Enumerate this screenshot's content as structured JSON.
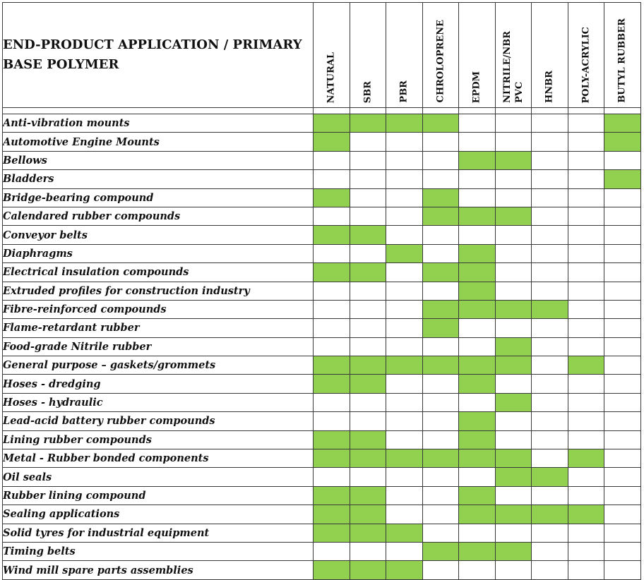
{
  "header": {
    "title": "END-PRODUCT APPLICATION  /  PRIMARY BASE POLYMER"
  },
  "colors": {
    "marked": "#92d050",
    "grid": "#3a3a3a"
  },
  "columns": [
    "NATURAL",
    "SBR",
    "PBR",
    "CHROLOPRENE",
    "EPDM",
    "NITRILE/NBR\nPVC",
    "HNBR",
    "POLY-ACRYLIC",
    "BUTYL RUBBER"
  ],
  "rows": [
    {
      "label": "Anti-vibration mounts",
      "marks": [
        1,
        1,
        1,
        1,
        0,
        0,
        0,
        0,
        1
      ]
    },
    {
      "label": "Automotive Engine Mounts",
      "marks": [
        1,
        0,
        0,
        0,
        0,
        0,
        0,
        0,
        1
      ]
    },
    {
      "label": "Bellows",
      "marks": [
        0,
        0,
        0,
        0,
        1,
        1,
        0,
        0,
        0
      ]
    },
    {
      "label": "Bladders",
      "marks": [
        0,
        0,
        0,
        0,
        0,
        0,
        0,
        0,
        1
      ]
    },
    {
      "label": "Bridge-bearing compound",
      "marks": [
        1,
        0,
        0,
        1,
        0,
        0,
        0,
        0,
        0
      ]
    },
    {
      "label": "Calendared rubber compounds",
      "marks": [
        0,
        0,
        0,
        1,
        1,
        1,
        0,
        0,
        0
      ]
    },
    {
      "label": "Conveyor belts",
      "marks": [
        1,
        1,
        0,
        0,
        0,
        0,
        0,
        0,
        0
      ]
    },
    {
      "label": "Diaphragms",
      "marks": [
        0,
        0,
        1,
        0,
        1,
        0,
        0,
        0,
        0
      ]
    },
    {
      "label": "Electrical insulation compounds",
      "marks": [
        1,
        1,
        0,
        1,
        1,
        0,
        0,
        0,
        0
      ]
    },
    {
      "label": "Extruded profiles for construction industry",
      "marks": [
        0,
        0,
        0,
        0,
        1,
        0,
        0,
        0,
        0
      ]
    },
    {
      "label": "Fibre-reinforced compounds",
      "marks": [
        0,
        0,
        0,
        1,
        1,
        1,
        1,
        0,
        0
      ]
    },
    {
      "label": "Flame-retardant rubber",
      "marks": [
        0,
        0,
        0,
        1,
        0,
        0,
        0,
        0,
        0
      ]
    },
    {
      "label": "Food-grade Nitrile rubber",
      "marks": [
        0,
        0,
        0,
        0,
        0,
        1,
        0,
        0,
        0
      ]
    },
    {
      "label": "General purpose – gaskets/grommets",
      "marks": [
        1,
        1,
        1,
        1,
        1,
        1,
        0,
        1,
        0
      ]
    },
    {
      "label": "Hoses - dredging",
      "marks": [
        1,
        1,
        0,
        0,
        1,
        0,
        0,
        0,
        0
      ]
    },
    {
      "label": "Hoses - hydraulic",
      "marks": [
        0,
        0,
        0,
        0,
        0,
        1,
        0,
        0,
        0
      ]
    },
    {
      "label": "Lead-acid battery rubber compounds",
      "marks": [
        0,
        0,
        0,
        0,
        1,
        0,
        0,
        0,
        0
      ]
    },
    {
      "label": "Lining rubber compounds",
      "marks": [
        1,
        1,
        0,
        0,
        1,
        0,
        0,
        0,
        0
      ]
    },
    {
      "label": "Metal - Rubber bonded components",
      "marks": [
        1,
        1,
        1,
        1,
        1,
        1,
        0,
        1,
        0
      ]
    },
    {
      "label": "Oil seals",
      "marks": [
        0,
        0,
        0,
        0,
        0,
        1,
        1,
        0,
        0
      ]
    },
    {
      "label": "Rubber lining compound",
      "marks": [
        1,
        1,
        0,
        0,
        1,
        0,
        0,
        0,
        0
      ]
    },
    {
      "label": "Sealing applications",
      "marks": [
        1,
        1,
        0,
        0,
        1,
        1,
        1,
        1,
        0
      ]
    },
    {
      "label": "Solid tyres for industrial equipment",
      "marks": [
        1,
        1,
        1,
        0,
        0,
        0,
        0,
        0,
        0
      ]
    },
    {
      "label": "Timing belts",
      "marks": [
        0,
        0,
        0,
        1,
        1,
        1,
        0,
        0,
        0
      ]
    },
    {
      "label": "Wind mill spare parts assemblies",
      "marks": [
        1,
        1,
        1,
        0,
        0,
        0,
        0,
        0,
        0
      ]
    }
  ]
}
